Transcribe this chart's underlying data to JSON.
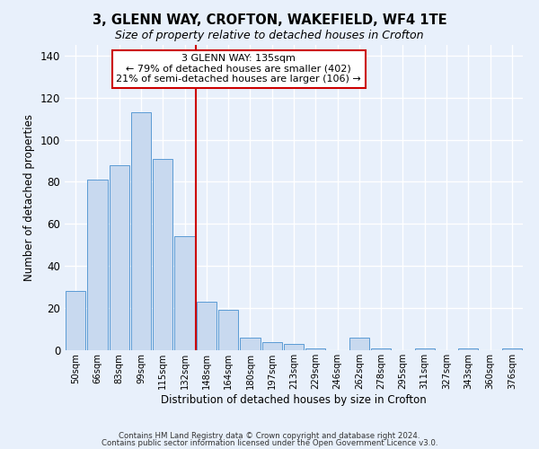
{
  "title": "3, GLENN WAY, CROFTON, WAKEFIELD, WF4 1TE",
  "subtitle": "Size of property relative to detached houses in Crofton",
  "xlabel": "Distribution of detached houses by size in Crofton",
  "ylabel": "Number of detached properties",
  "bar_labels": [
    "50sqm",
    "66sqm",
    "83sqm",
    "99sqm",
    "115sqm",
    "132sqm",
    "148sqm",
    "164sqm",
    "180sqm",
    "197sqm",
    "213sqm",
    "229sqm",
    "246sqm",
    "262sqm",
    "278sqm",
    "295sqm",
    "311sqm",
    "327sqm",
    "343sqm",
    "360sqm",
    "376sqm"
  ],
  "bar_values": [
    28,
    81,
    88,
    113,
    91,
    54,
    23,
    19,
    6,
    4,
    3,
    1,
    0,
    6,
    1,
    0,
    1,
    0,
    1,
    0,
    1
  ],
  "bar_color": "#c8d9ef",
  "bar_edge_color": "#5b9bd5",
  "vline_x": 5.5,
  "vline_color": "#cc0000",
  "annotation_text": "3 GLENN WAY: 135sqm\n← 79% of detached houses are smaller (402)\n21% of semi-detached houses are larger (106) →",
  "annotation_box_color": "#ffffff",
  "annotation_box_edge": "#cc0000",
  "ylim": [
    0,
    145
  ],
  "yticks": [
    0,
    20,
    40,
    60,
    80,
    100,
    120,
    140
  ],
  "footer_line1": "Contains HM Land Registry data © Crown copyright and database right 2024.",
  "footer_line2": "Contains public sector information licensed under the Open Government Licence v3.0.",
  "background_color": "#e8f0fb",
  "plot_bg_color": "#e8f0fb",
  "grid_color": "#ffffff"
}
